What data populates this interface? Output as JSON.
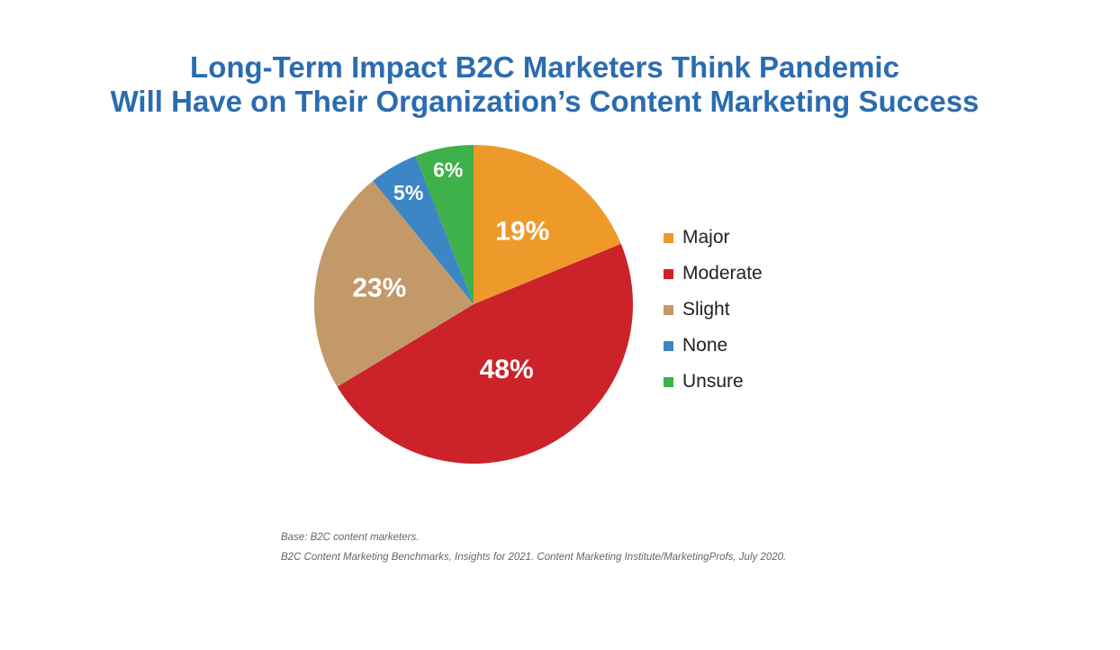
{
  "title": {
    "line1": "Long-Term Impact B2C Marketers Think Pandemic",
    "line2": "Will Have on Their Organization’s Content Marketing Success"
  },
  "chart_data": {
    "type": "pie",
    "slices": [
      {
        "label": "Major",
        "value": 19,
        "display": "19%",
        "color": "#ed9a2a"
      },
      {
        "label": "Moderate",
        "value": 48,
        "display": "48%",
        "color": "#cc2229"
      },
      {
        "label": "Slight",
        "value": 23,
        "display": "23%",
        "color": "#c4996a"
      },
      {
        "label": "None",
        "value": 5,
        "display": "5%",
        "color": "#3c86c6"
      },
      {
        "label": "Unsure",
        "value": 6,
        "display": "6%",
        "color": "#3fb14a"
      }
    ],
    "legend_position": "right"
  },
  "footnote": {
    "line1": "Base: B2C content marketers.",
    "line2": "B2C Content Marketing Benchmarks, Insights for 2021. Content Marketing Institute/MarketingProfs, July 2020."
  }
}
